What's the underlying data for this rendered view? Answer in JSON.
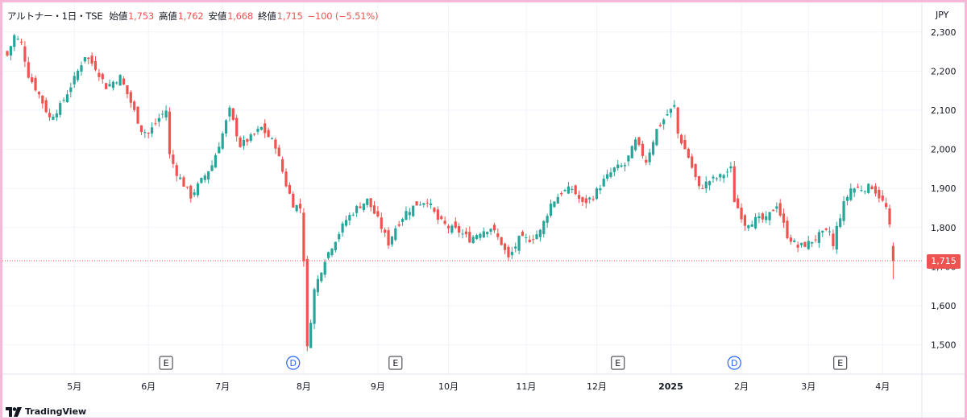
{
  "legend": {
    "symbol": "アルトナー・1日・TSE",
    "open_label": "始値",
    "open": "1,753",
    "high_label": "高値",
    "high": "1,762",
    "low_label": "安値",
    "low": "1,668",
    "close_label": "終値",
    "close": "1,715",
    "change": "−100 (−5.51%)"
  },
  "currency": "JPY",
  "last_price_label": "1,715",
  "brand": "TradingView",
  "colors": {
    "up": "#26a69a",
    "down": "#ef5350",
    "grid": "#f0f3fa",
    "axis_text": "#131722"
  },
  "chart_data": {
    "type": "candlestick",
    "yaxis": {
      "min": 1450,
      "max": 2330,
      "ticks": [
        "1,500",
        "1,600",
        "1,700",
        "1,800",
        "1,900",
        "2,000",
        "2,100",
        "2,200",
        "2,300"
      ],
      "tick_values": [
        1500,
        1600,
        1700,
        1800,
        1900,
        2000,
        2100,
        2200,
        2300
      ]
    },
    "xaxis": {
      "labels": [
        "5月",
        "6月",
        "7月",
        "8月",
        "9月",
        "10月",
        "11月",
        "12月",
        "2025",
        "2月",
        "3月",
        "4月"
      ],
      "label_index": [
        19,
        40,
        61,
        84,
        105,
        125,
        147,
        167,
        188,
        208,
        227,
        248
      ]
    },
    "last_price": 1715,
    "events": [
      {
        "label": "E",
        "kind": "earnings",
        "index": 45
      },
      {
        "label": "D",
        "kind": "dividend",
        "index": 81
      },
      {
        "label": "E",
        "kind": "earnings",
        "index": 110
      },
      {
        "label": "E",
        "kind": "earnings",
        "index": 173
      },
      {
        "label": "D",
        "kind": "dividend",
        "index": 206
      },
      {
        "label": "E",
        "kind": "earnings",
        "index": 236
      }
    ],
    "key_points": [
      [
        0,
        2240
      ],
      [
        2,
        2290
      ],
      [
        4,
        2270
      ],
      [
        6,
        2190
      ],
      [
        9,
        2140
      ],
      [
        12,
        2080
      ],
      [
        15,
        2110
      ],
      [
        19,
        2180
      ],
      [
        22,
        2240
      ],
      [
        25,
        2210
      ],
      [
        28,
        2160
      ],
      [
        32,
        2185
      ],
      [
        35,
        2120
      ],
      [
        38,
        2050
      ],
      [
        40,
        2040
      ],
      [
        43,
        2080
      ],
      [
        45,
        2100
      ],
      [
        46,
        1985
      ],
      [
        48,
        1940
      ],
      [
        52,
        1880
      ],
      [
        55,
        1920
      ],
      [
        58,
        1960
      ],
      [
        61,
        2040
      ],
      [
        63,
        2100
      ],
      [
        66,
        2010
      ],
      [
        69,
        2030
      ],
      [
        72,
        2055
      ],
      [
        76,
        2010
      ],
      [
        79,
        1910
      ],
      [
        81,
        1860
      ],
      [
        83,
        1850
      ],
      [
        84,
        1720
      ],
      [
        85,
        1490
      ],
      [
        87,
        1640
      ],
      [
        90,
        1720
      ],
      [
        93,
        1770
      ],
      [
        96,
        1820
      ],
      [
        99,
        1850
      ],
      [
        102,
        1870
      ],
      [
        105,
        1820
      ],
      [
        108,
        1760
      ],
      [
        110,
        1800
      ],
      [
        113,
        1840
      ],
      [
        116,
        1860
      ],
      [
        119,
        1870
      ],
      [
        122,
        1820
      ],
      [
        125,
        1800
      ],
      [
        128,
        1790
      ],
      [
        131,
        1770
      ],
      [
        134,
        1790
      ],
      [
        137,
        1800
      ],
      [
        140,
        1760
      ],
      [
        142,
        1720
      ],
      [
        145,
        1770
      ],
      [
        148,
        1770
      ],
      [
        151,
        1790
      ],
      [
        154,
        1860
      ],
      [
        157,
        1890
      ],
      [
        160,
        1900
      ],
      [
        163,
        1860
      ],
      [
        166,
        1880
      ],
      [
        169,
        1920
      ],
      [
        172,
        1950
      ],
      [
        175,
        1960
      ],
      [
        178,
        2020
      ],
      [
        181,
        1970
      ],
      [
        184,
        2050
      ],
      [
        187,
        2090
      ],
      [
        189,
        2110
      ],
      [
        190,
        2040
      ],
      [
        193,
        1980
      ],
      [
        196,
        1900
      ],
      [
        199,
        1920
      ],
      [
        202,
        1930
      ],
      [
        205,
        1950
      ],
      [
        206,
        1870
      ],
      [
        209,
        1810
      ],
      [
        212,
        1820
      ],
      [
        215,
        1820
      ],
      [
        218,
        1860
      ],
      [
        221,
        1780
      ],
      [
        224,
        1750
      ],
      [
        227,
        1760
      ],
      [
        230,
        1780
      ],
      [
        233,
        1790
      ],
      [
        234,
        1750
      ],
      [
        235,
        1800
      ],
      [
        237,
        1860
      ],
      [
        239,
        1900
      ],
      [
        242,
        1900
      ],
      [
        245,
        1905
      ],
      [
        247,
        1880
      ],
      [
        249,
        1850
      ],
      [
        250,
        1800
      ],
      [
        251,
        1753
      ]
    ],
    "last_candle": {
      "open": 1753,
      "high": 1762,
      "low": 1668,
      "close": 1715
    }
  }
}
